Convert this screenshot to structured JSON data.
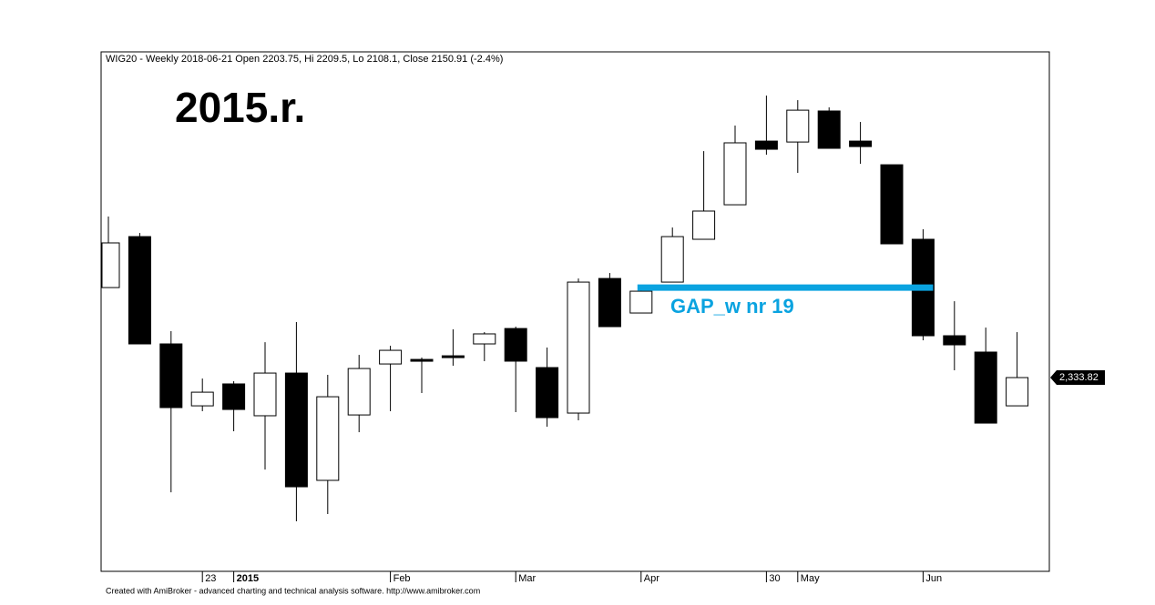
{
  "chart_data": {
    "type": "candlestick",
    "title": "WIG20 - Weekly 2018-06-21 Open 2203.75, Hi 2209.5, Lo 2108.1, Close 2150.91 (-2.4%)",
    "subtitle": "2015.r.",
    "footer": "Created with AmiBroker - advanced charting and technical analysis software. http://www.amibroker.com",
    "categories": [
      null,
      null,
      null,
      "23",
      "2015",
      null,
      null,
      null,
      null,
      "Feb",
      null,
      null,
      null,
      "Mar",
      null,
      null,
      null,
      "Apr",
      null,
      null,
      null,
      "30",
      "May",
      null,
      null,
      null,
      "Jun",
      null,
      null,
      null
    ],
    "open": [
      2411.0,
      2454.7,
      2362.7,
      2309.6,
      2328.4,
      2301.1,
      2337.7,
      2245.7,
      2301.8,
      2345.5,
      2349.4,
      2352.5,
      2362.7,
      2375.9,
      2342.4,
      2303.4,
      2418.8,
      2389.2,
      2415.7,
      2452.4,
      2482.0,
      2536.6,
      2535.8,
      2562.4,
      2536.6,
      2516.3,
      2452.4,
      2369.7,
      2355.7,
      2309.6
    ],
    "high": [
      2471.9,
      2457.8,
      2373.6,
      2333.0,
      2330.7,
      2364.2,
      2381.4,
      2336.2,
      2353.3,
      2361.1,
      2351.0,
      2375.2,
      2372.8,
      2377.5,
      2359.6,
      2418.8,
      2423.5,
      2409.5,
      2462.5,
      2528.0,
      2549.9,
      2575.6,
      2571.7,
      2565.5,
      2553.0,
      2516.3,
      2461.0,
      2399.3,
      2376.7,
      2372.8
    ],
    "low": [
      2411.0,
      2362.7,
      2235.5,
      2305.0,
      2287.8,
      2255.0,
      2210.6,
      2216.8,
      2287.0,
      2305.0,
      2320.6,
      2344.0,
      2347.9,
      2304.2,
      2291.7,
      2297.2,
      2377.5,
      2389.2,
      2415.7,
      2452.4,
      2482.0,
      2524.9,
      2509.3,
      2530.4,
      2517.1,
      2448.5,
      2365.8,
      2340.1,
      2294.8,
      2309.6
    ],
    "close": [
      2449.3,
      2362.7,
      2308.1,
      2321.3,
      2306.5,
      2337.7,
      2240.2,
      2317.4,
      2341.6,
      2357.2,
      2347.9,
      2351.0,
      2371.3,
      2347.9,
      2299.5,
      2415.7,
      2377.5,
      2407.9,
      2454.7,
      2476.6,
      2535.1,
      2529.6,
      2563.1,
      2530.4,
      2531.9,
      2448.5,
      2369.7,
      2361.9,
      2294.8,
      2333.82
    ],
    "up_color": "#ffffff",
    "down_color": "#000000",
    "ylim": [
      2167.7,
      2613.1
    ],
    "last_price": {
      "value": 2333.82,
      "label": "2,333.82"
    },
    "gap": {
      "value": 2411.0,
      "label": "GAP_w nr 19",
      "color": "#0aa3e0"
    }
  }
}
